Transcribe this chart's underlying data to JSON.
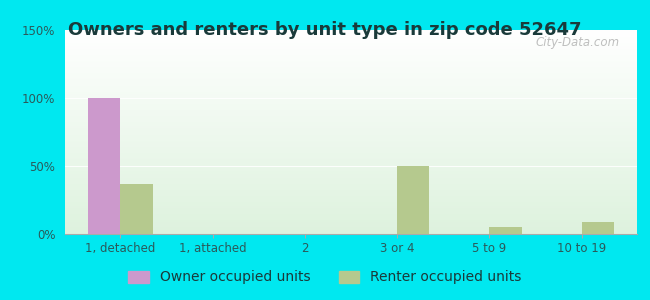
{
  "title": "Owners and renters by unit type in zip code 52647",
  "categories": [
    "1, detached",
    "1, attached",
    "2",
    "3 or 4",
    "5 to 9",
    "10 to 19"
  ],
  "owner_values": [
    100,
    0,
    0,
    0,
    0,
    0
  ],
  "renter_values": [
    37,
    0,
    0,
    50,
    5,
    9
  ],
  "owner_color": "#cc99cc",
  "renter_color": "#b5c98e",
  "ylim": [
    0,
    150
  ],
  "yticks": [
    0,
    50,
    100,
    150
  ],
  "ytick_labels": [
    "0%",
    "50%",
    "100%",
    "150%"
  ],
  "outer_bg": "#00e8f0",
  "bar_width": 0.35,
  "title_fontsize": 13,
  "legend_fontsize": 10,
  "watermark": "City-Data.com",
  "bg_top_color": "#f5fff8",
  "bg_bottom_color": "#d8f0dc"
}
